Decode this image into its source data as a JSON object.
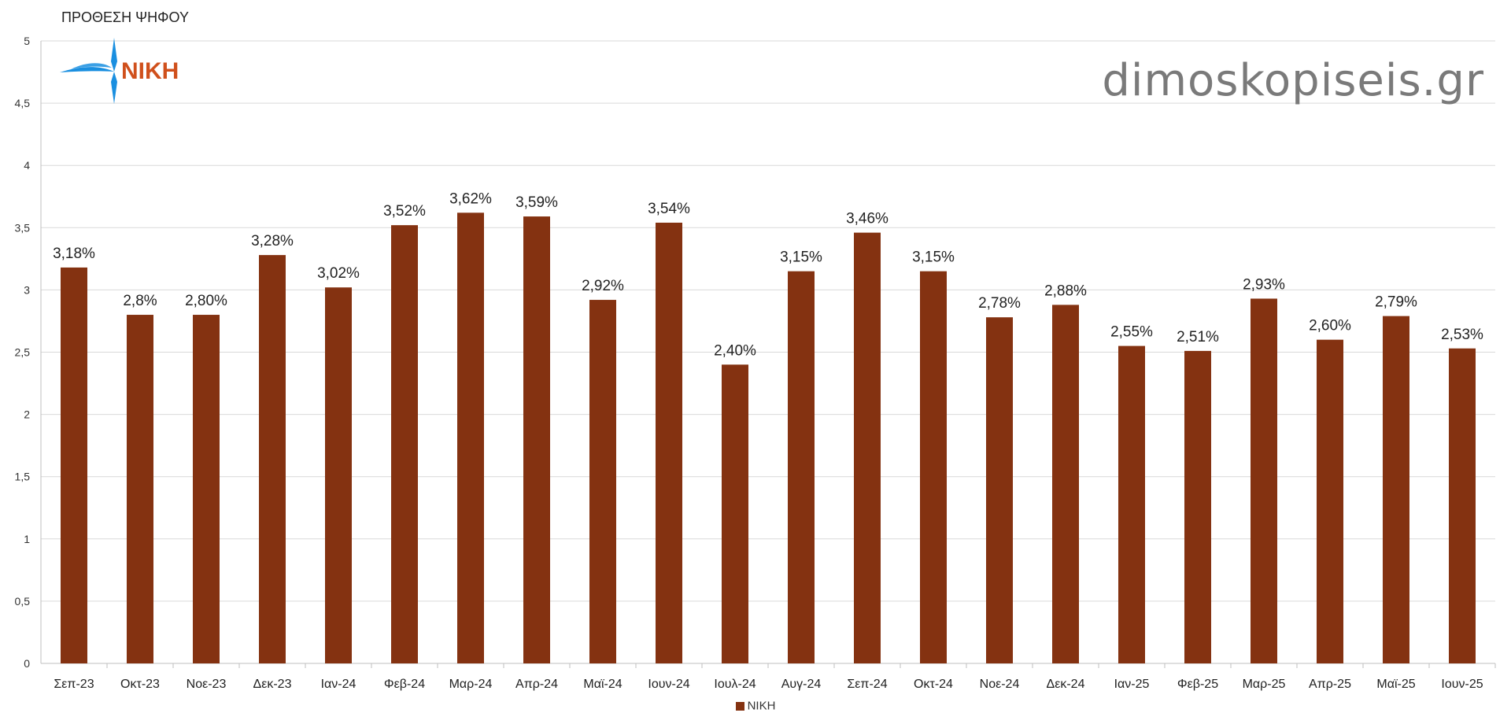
{
  "chart_data": {
    "type": "bar",
    "title": "ΠΡΟΘΕΣΗ ΨΗΦΟΥ",
    "categories": [
      "Σεπ-23",
      "Οκτ-23",
      "Νοε-23",
      "Δεκ-23",
      "Ιαν-24",
      "Φεβ-24",
      "Μαρ-24",
      "Απρ-24",
      "Μαϊ-24",
      "Ιουν-24",
      "Ιουλ-24",
      "Αυγ-24",
      "Σεπ-24",
      "Οκτ-24",
      "Νοε-24",
      "Δεκ-24",
      "Ιαν-25",
      "Φεβ-25",
      "Μαρ-25",
      "Απρ-25",
      "Μαϊ-25",
      "Ιουν-25"
    ],
    "series": [
      {
        "name": "ΝΙΚΗ",
        "color": "#843211",
        "values": [
          3.18,
          2.8,
          2.8,
          3.28,
          3.02,
          3.52,
          3.62,
          3.59,
          2.92,
          3.54,
          2.4,
          3.15,
          3.46,
          3.15,
          2.78,
          2.88,
          2.55,
          2.51,
          2.93,
          2.6,
          2.79,
          2.53
        ],
        "data_labels": [
          "3,18%",
          "2,8%",
          "2,80%",
          "3,28%",
          "3,02%",
          "3,52%",
          "3,62%",
          "3,59%",
          "2,92%",
          "3,54%",
          "2,40%",
          "3,15%",
          "3,46%",
          "3,15%",
          "2,78%",
          "2,88%",
          "2,55%",
          "2,51%",
          "2,93%",
          "2,60%",
          "2,79%",
          "2,53%"
        ]
      }
    ],
    "ylim": [
      0,
      5
    ],
    "yticks": [
      0,
      0.5,
      1,
      1.5,
      2,
      2.5,
      3,
      3.5,
      4,
      4.5,
      5
    ],
    "ytick_labels": [
      "0",
      "0,5",
      "1",
      "1,5",
      "2",
      "2,5",
      "3",
      "3,5",
      "4",
      "4,5",
      "5"
    ],
    "grid": true,
    "legend_position": "bottom-center"
  },
  "watermark": "dimoskopiseis.gr",
  "logo": {
    "text": "ΝΙΚΗ",
    "text_color": "#d0501c",
    "mark_color": "#1a8fe0"
  }
}
